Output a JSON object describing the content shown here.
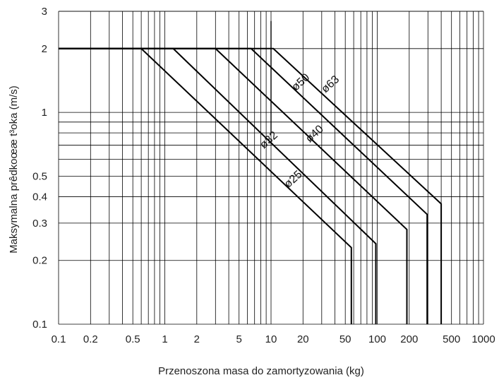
{
  "chart_data": {
    "type": "line",
    "xlabel": "Przenoszona masa do zamortyzowania (kg)",
    "ylabel": "Maksymalna prêdkoœæ t³oka (m/s)",
    "x_scale": "log",
    "y_scale": "log",
    "xlim": [
      0.1,
      1000
    ],
    "ylim": [
      0.1,
      3
    ],
    "x_ticks": [
      0.1,
      0.2,
      0.5,
      1,
      2,
      5,
      10,
      20,
      50,
      100,
      200,
      500,
      1000
    ],
    "x_tick_labels": [
      "0.1",
      "0.2",
      "0.5",
      "1",
      "2",
      "5",
      "10",
      "20",
      "50",
      "100",
      "200",
      "500",
      "1000"
    ],
    "y_ticks": [
      0.1,
      0.2,
      0.3,
      0.4,
      0.5,
      1,
      2,
      3
    ],
    "y_tick_labels": [
      "0.1",
      "0.2",
      "0.3",
      "0.4",
      "0.5",
      "1",
      "2",
      "3"
    ],
    "grid": true,
    "marker_line": {
      "x": 10,
      "y_range": [
        0.8,
        2.7
      ]
    },
    "series": [
      {
        "name": "ø25",
        "points": [
          [
            0.1,
            2
          ],
          [
            0.6,
            2
          ],
          [
            57,
            0.23
          ],
          [
            57,
            0.1
          ]
        ]
      },
      {
        "name": "ø32",
        "points": [
          [
            0.1,
            2
          ],
          [
            1.2,
            2
          ],
          [
            97,
            0.24
          ],
          [
            97,
            0.1
          ]
        ]
      },
      {
        "name": "ø40",
        "points": [
          [
            0.1,
            2
          ],
          [
            3.0,
            2
          ],
          [
            190,
            0.28
          ],
          [
            190,
            0.1
          ]
        ]
      },
      {
        "name": "ø50",
        "points": [
          [
            0.1,
            2
          ],
          [
            6.5,
            2
          ],
          [
            295,
            0.33
          ],
          [
            295,
            0.1
          ]
        ]
      },
      {
        "name": "ø63",
        "points": [
          [
            0.1,
            2
          ],
          [
            10.5,
            2
          ],
          [
            400,
            0.37
          ],
          [
            400,
            0.1
          ]
        ]
      }
    ],
    "series_labels": [
      {
        "name": "ø25",
        "at": [
          17,
          0.47
        ],
        "angle": -42
      },
      {
        "name": "ø32",
        "at": [
          10,
          0.72
        ],
        "angle": -42
      },
      {
        "name": "ø40",
        "at": [
          27,
          0.77
        ],
        "angle": -42
      },
      {
        "name": "ø50",
        "at": [
          20,
          1.35
        ],
        "angle": -42
      },
      {
        "name": "ø63",
        "at": [
          38,
          1.32
        ],
        "angle": -42
      }
    ]
  }
}
